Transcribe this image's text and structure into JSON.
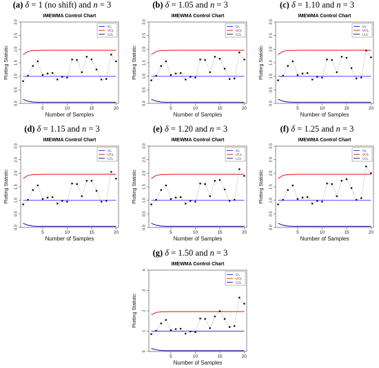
{
  "page_title": "IMEWMA Control Chart panels",
  "panels": [
    {
      "label": "(a)",
      "delta": "1 (no shift)",
      "n": "3"
    },
    {
      "label": "(b)",
      "delta": "1.05",
      "n": "3"
    },
    {
      "label": "(c)",
      "delta": "1.10",
      "n": "3"
    },
    {
      "label": "(d)",
      "delta": "1.15",
      "n": "3"
    },
    {
      "label": "(e)",
      "delta": "1.20",
      "n": "3"
    },
    {
      "label": "(f)",
      "delta": "1.25",
      "n": "3"
    },
    {
      "label": "(g)",
      "delta": "1.50",
      "n": "3"
    }
  ],
  "caption_text": {
    "delta_symbol": "δ",
    "eq": " = ",
    "and": " and ",
    "n_symbol": "n"
  },
  "colors": {
    "cl": "#3333ff",
    "ucl": "#ee2222",
    "lcl": "#1a1aa8",
    "points": "#111111",
    "connector": "#999999",
    "frame": "#555555"
  },
  "chart_data": [
    {
      "type": "line",
      "title": "IMEWMA Control Chart",
      "xlabel": "Number of Samples",
      "ylabel": "Plotting Statistic",
      "xlim": [
        1,
        20
      ],
      "ylim": [
        0,
        3
      ],
      "xticks": [
        5,
        10,
        15,
        20
      ],
      "yticks": [
        0,
        0.5,
        1.0,
        1.5,
        2.0,
        2.5,
        3.0
      ],
      "x": [
        1,
        2,
        3,
        4,
        5,
        6,
        7,
        8,
        9,
        10,
        11,
        12,
        13,
        14,
        15,
        16,
        17,
        18,
        19,
        20
      ],
      "series": [
        {
          "name": "CL",
          "values": [
            1,
            1,
            1,
            1,
            1,
            1,
            1,
            1,
            1,
            1,
            1,
            1,
            1,
            1,
            1,
            1,
            1,
            1,
            1,
            1
          ]
        },
        {
          "name": "UCL",
          "values": [
            1.8,
            1.92,
            1.95,
            1.95,
            1.96,
            1.96,
            1.96,
            1.96,
            1.96,
            1.96,
            1.96,
            1.96,
            1.96,
            1.96,
            1.96,
            1.96,
            1.96,
            1.96,
            1.96,
            1.96
          ]
        },
        {
          "name": "LCL",
          "values": [
            0.15,
            0.08,
            0.05,
            0.04,
            0.04,
            0.04,
            0.04,
            0.04,
            0.04,
            0.04,
            0.04,
            0.04,
            0.04,
            0.04,
            0.04,
            0.04,
            0.04,
            0.04,
            0.04,
            0.04
          ]
        },
        {
          "values": [
            0.82,
            1.02,
            1.38,
            1.55,
            1.05,
            1.1,
            1.12,
            0.88,
            0.98,
            0.95,
            1.62,
            1.6,
            1.15,
            1.72,
            1.62,
            1.25,
            0.88,
            0.9,
            1.8,
            1.55
          ]
        }
      ],
      "legend": "top-right",
      "grid": false
    },
    {
      "type": "line",
      "title": "IMEWMA Control Chart",
      "xlabel": "Number of Samples",
      "ylabel": "Plotting Statistic",
      "xlim": [
        1,
        20
      ],
      "ylim": [
        0,
        3
      ],
      "xticks": [
        5,
        10,
        15,
        20
      ],
      "yticks": [
        0,
        0.5,
        1.0,
        1.5,
        2.0,
        2.5,
        3.0
      ],
      "x": [
        1,
        2,
        3,
        4,
        5,
        6,
        7,
        8,
        9,
        10,
        11,
        12,
        13,
        14,
        15,
        16,
        17,
        18,
        19,
        20
      ],
      "series": [
        {
          "name": "CL",
          "values": [
            1,
            1,
            1,
            1,
            1,
            1,
            1,
            1,
            1,
            1,
            1,
            1,
            1,
            1,
            1,
            1,
            1,
            1,
            1,
            1
          ]
        },
        {
          "name": "UCL",
          "values": [
            1.8,
            1.92,
            1.95,
            1.95,
            1.96,
            1.96,
            1.96,
            1.96,
            1.96,
            1.96,
            1.96,
            1.96,
            1.96,
            1.96,
            1.96,
            1.96,
            1.96,
            1.96,
            1.96,
            1.96
          ]
        },
        {
          "name": "LCL",
          "values": [
            0.15,
            0.08,
            0.05,
            0.04,
            0.04,
            0.04,
            0.04,
            0.04,
            0.04,
            0.04,
            0.04,
            0.04,
            0.04,
            0.04,
            0.04,
            0.04,
            0.04,
            0.04,
            0.04,
            0.04
          ]
        },
        {
          "values": [
            0.85,
            1.02,
            1.38,
            1.55,
            1.05,
            1.1,
            1.12,
            0.88,
            0.98,
            0.95,
            1.62,
            1.6,
            1.15,
            1.72,
            1.65,
            1.28,
            0.9,
            0.92,
            1.88,
            1.62
          ]
        }
      ],
      "legend": "top-right",
      "grid": false
    },
    {
      "type": "line",
      "title": "IMEWMA Control Chart",
      "xlabel": "Number of Samples",
      "ylabel": "Plotting Statistic",
      "xlim": [
        1,
        20
      ],
      "ylim": [
        0,
        3
      ],
      "xticks": [
        5,
        10,
        15,
        20
      ],
      "yticks": [
        0,
        0.5,
        1.0,
        1.5,
        2.0,
        2.5,
        3.0
      ],
      "x": [
        1,
        2,
        3,
        4,
        5,
        6,
        7,
        8,
        9,
        10,
        11,
        12,
        13,
        14,
        15,
        16,
        17,
        18,
        19,
        20
      ],
      "series": [
        {
          "name": "CL",
          "values": [
            1,
            1,
            1,
            1,
            1,
            1,
            1,
            1,
            1,
            1,
            1,
            1,
            1,
            1,
            1,
            1,
            1,
            1,
            1,
            1
          ]
        },
        {
          "name": "UCL",
          "values": [
            1.8,
            1.92,
            1.95,
            1.95,
            1.96,
            1.96,
            1.96,
            1.96,
            1.96,
            1.96,
            1.96,
            1.96,
            1.96,
            1.96,
            1.96,
            1.96,
            1.96,
            1.96,
            1.96,
            1.96
          ]
        },
        {
          "name": "LCL",
          "values": [
            0.15,
            0.08,
            0.05,
            0.04,
            0.04,
            0.04,
            0.04,
            0.04,
            0.04,
            0.04,
            0.04,
            0.04,
            0.04,
            0.04,
            0.04,
            0.04,
            0.04,
            0.04,
            0.04,
            0.04
          ]
        },
        {
          "values": [
            0.85,
            1.02,
            1.38,
            1.55,
            1.05,
            1.1,
            1.12,
            0.88,
            0.98,
            0.95,
            1.62,
            1.6,
            1.15,
            1.72,
            1.68,
            1.3,
            0.92,
            0.95,
            1.95,
            1.7
          ]
        }
      ],
      "legend": "top-right",
      "grid": false
    },
    {
      "type": "line",
      "title": "IMEWMA Control Chart",
      "xlabel": "Number of Samples",
      "ylabel": "Plotting Statistic",
      "xlim": [
        1,
        20
      ],
      "ylim": [
        0,
        3
      ],
      "xticks": [
        5,
        10,
        15,
        20
      ],
      "yticks": [
        0,
        0.5,
        1.0,
        1.5,
        2.0,
        2.5,
        3.0
      ],
      "x": [
        1,
        2,
        3,
        4,
        5,
        6,
        7,
        8,
        9,
        10,
        11,
        12,
        13,
        14,
        15,
        16,
        17,
        18,
        19,
        20
      ],
      "series": [
        {
          "name": "CL",
          "values": [
            1,
            1,
            1,
            1,
            1,
            1,
            1,
            1,
            1,
            1,
            1,
            1,
            1,
            1,
            1,
            1,
            1,
            1,
            1,
            1
          ]
        },
        {
          "name": "UCL",
          "values": [
            1.8,
            1.92,
            1.95,
            1.95,
            1.96,
            1.96,
            1.96,
            1.96,
            1.96,
            1.96,
            1.96,
            1.96,
            1.96,
            1.96,
            1.96,
            1.96,
            1.96,
            1.96,
            1.96,
            1.96
          ]
        },
        {
          "name": "LCL",
          "values": [
            0.15,
            0.08,
            0.05,
            0.04,
            0.04,
            0.04,
            0.04,
            0.04,
            0.04,
            0.04,
            0.04,
            0.04,
            0.04,
            0.04,
            0.04,
            0.04,
            0.04,
            0.04,
            0.04,
            0.04
          ]
        },
        {
          "values": [
            0.85,
            1.02,
            1.38,
            1.55,
            1.05,
            1.1,
            1.12,
            0.88,
            0.98,
            0.95,
            1.62,
            1.6,
            1.15,
            1.72,
            1.72,
            1.35,
            0.95,
            0.98,
            2.05,
            1.8
          ]
        }
      ],
      "legend": "top-right",
      "grid": false
    },
    {
      "type": "line",
      "title": "IMEWMA Control Chart",
      "xlabel": "Number of Samples",
      "ylabel": "Plotting Statistic",
      "xlim": [
        1,
        20
      ],
      "ylim": [
        0,
        3
      ],
      "xticks": [
        5,
        10,
        15,
        20
      ],
      "yticks": [
        0,
        0.5,
        1.0,
        1.5,
        2.0,
        2.5,
        3.0
      ],
      "x": [
        1,
        2,
        3,
        4,
        5,
        6,
        7,
        8,
        9,
        10,
        11,
        12,
        13,
        14,
        15,
        16,
        17,
        18,
        19,
        20
      ],
      "series": [
        {
          "name": "CL",
          "values": [
            1,
            1,
            1,
            1,
            1,
            1,
            1,
            1,
            1,
            1,
            1,
            1,
            1,
            1,
            1,
            1,
            1,
            1,
            1,
            1
          ]
        },
        {
          "name": "UCL",
          "values": [
            1.8,
            1.92,
            1.95,
            1.95,
            1.96,
            1.96,
            1.96,
            1.96,
            1.96,
            1.96,
            1.96,
            1.96,
            1.96,
            1.96,
            1.96,
            1.96,
            1.96,
            1.96,
            1.96,
            1.96
          ]
        },
        {
          "name": "LCL",
          "values": [
            0.15,
            0.08,
            0.05,
            0.04,
            0.04,
            0.04,
            0.04,
            0.04,
            0.04,
            0.04,
            0.04,
            0.04,
            0.04,
            0.04,
            0.04,
            0.04,
            0.04,
            0.04,
            0.04,
            0.04
          ]
        },
        {
          "values": [
            0.85,
            1.02,
            1.38,
            1.55,
            1.05,
            1.1,
            1.12,
            0.88,
            0.98,
            0.95,
            1.62,
            1.6,
            1.15,
            1.72,
            1.75,
            1.4,
            0.98,
            1.02,
            2.15,
            1.9
          ]
        }
      ],
      "legend": "top-right",
      "grid": false
    },
    {
      "type": "line",
      "title": "IMEWMA Control Chart",
      "xlabel": "Number of Samples",
      "ylabel": "Plotting Statistic",
      "xlim": [
        1,
        20
      ],
      "ylim": [
        0,
        3
      ],
      "xticks": [
        5,
        10,
        15,
        20
      ],
      "yticks": [
        0,
        0.5,
        1.0,
        1.5,
        2.0,
        2.5,
        3.0
      ],
      "x": [
        1,
        2,
        3,
        4,
        5,
        6,
        7,
        8,
        9,
        10,
        11,
        12,
        13,
        14,
        15,
        16,
        17,
        18,
        19,
        20
      ],
      "series": [
        {
          "name": "CL",
          "values": [
            1,
            1,
            1,
            1,
            1,
            1,
            1,
            1,
            1,
            1,
            1,
            1,
            1,
            1,
            1,
            1,
            1,
            1,
            1,
            1
          ]
        },
        {
          "name": "UCL",
          "values": [
            1.8,
            1.92,
            1.95,
            1.95,
            1.96,
            1.96,
            1.96,
            1.96,
            1.96,
            1.96,
            1.96,
            1.96,
            1.96,
            1.96,
            1.96,
            1.96,
            1.96,
            1.96,
            1.96,
            1.96
          ]
        },
        {
          "name": "LCL",
          "values": [
            0.15,
            0.08,
            0.05,
            0.04,
            0.04,
            0.04,
            0.04,
            0.04,
            0.04,
            0.04,
            0.04,
            0.04,
            0.04,
            0.04,
            0.04,
            0.04,
            0.04,
            0.04,
            0.04,
            0.04
          ]
        },
        {
          "values": [
            0.85,
            1.02,
            1.38,
            1.55,
            1.05,
            1.1,
            1.12,
            0.88,
            0.98,
            0.95,
            1.62,
            1.6,
            1.15,
            1.72,
            1.78,
            1.45,
            1.02,
            1.08,
            2.25,
            2.0
          ]
        }
      ],
      "legend": "top-right",
      "grid": false
    },
    {
      "type": "line",
      "title": "IMEWMA Control Chart",
      "xlabel": "Number of Samples",
      "ylabel": "Plotting Statistic",
      "xlim": [
        1,
        20
      ],
      "ylim": [
        0,
        4
      ],
      "xticks": [
        5,
        10,
        15,
        20
      ],
      "yticks": [
        0,
        1,
        2,
        3,
        4
      ],
      "x": [
        1,
        2,
        3,
        4,
        5,
        6,
        7,
        8,
        9,
        10,
        11,
        12,
        13,
        14,
        15,
        16,
        17,
        18,
        19,
        20
      ],
      "series": [
        {
          "name": "CL",
          "values": [
            1,
            1,
            1,
            1,
            1,
            1,
            1,
            1,
            1,
            1,
            1,
            1,
            1,
            1,
            1,
            1,
            1,
            1,
            1,
            1
          ]
        },
        {
          "name": "UCL",
          "values": [
            1.8,
            1.92,
            1.95,
            1.95,
            1.96,
            1.96,
            1.96,
            1.96,
            1.96,
            1.96,
            1.96,
            1.96,
            1.96,
            1.96,
            1.96,
            1.96,
            1.96,
            1.96,
            1.96,
            1.96
          ]
        },
        {
          "name": "LCL",
          "values": [
            0.15,
            0.08,
            0.05,
            0.04,
            0.04,
            0.04,
            0.04,
            0.04,
            0.04,
            0.04,
            0.04,
            0.04,
            0.04,
            0.04,
            0.04,
            0.04,
            0.04,
            0.04,
            0.04,
            0.04
          ]
        },
        {
          "values": [
            0.85,
            1.02,
            1.38,
            1.55,
            1.05,
            1.1,
            1.12,
            0.88,
            0.98,
            0.95,
            1.62,
            1.6,
            1.15,
            1.72,
            1.98,
            1.6,
            1.2,
            1.25,
            2.65,
            2.35
          ]
        }
      ],
      "legend": "top-right",
      "grid": false
    }
  ]
}
